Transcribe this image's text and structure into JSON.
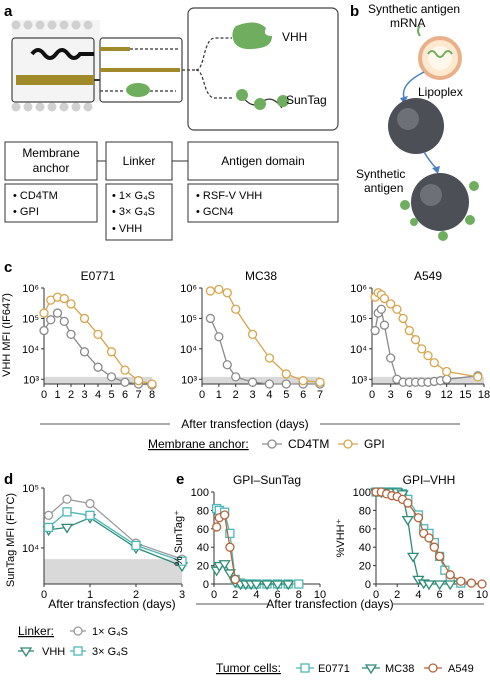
{
  "panel_labels": {
    "a": "a",
    "b": "b",
    "c": "c",
    "d": "d",
    "e": "e"
  },
  "panel_a": {
    "vhh_label": "VHH",
    "suntag_label": "SunTag",
    "headers": [
      "Membrane anchor",
      "Linker",
      "Antigen domain"
    ],
    "anchor_items": [
      "CD4TM",
      "GPI"
    ],
    "linker_items": [
      "1× G₄S",
      "3× G₄S",
      "VHH"
    ],
    "antigen_items": [
      "RSF-V VHH",
      "GCN4"
    ]
  },
  "panel_b": {
    "mrna_label": "Synthetic antigen mRNA",
    "lipoplex_label": "Lipoplex",
    "antigen_label": "Synthetic antigen"
  },
  "panel_c": {
    "ylabel": "VHH MFI (IF647)",
    "xlabel": "After transfection (days)",
    "legend_title": "Membrane anchor:",
    "legend": [
      "CD4TM",
      "GPI"
    ],
    "colors": {
      "CD4TM": "#8a8a8a",
      "GPI": "#d6a54c",
      "shade": "#d9d9d9"
    }
  },
  "panel_d": {
    "ylabel": "SunTag MFI (FITC)",
    "xlabel": "After transfection (days)",
    "legend_title": "Linker:",
    "legend": [
      "1× G₄S",
      "VHH",
      "3× G₄S"
    ],
    "colors": {
      "g1": "#9a9a9a",
      "vhh": "#2e8b78",
      "g3": "#4cb8b6"
    }
  },
  "panel_e": {
    "xlabel": "After transfection (days)",
    "legend_title": "Tumor cells:",
    "legend": [
      "E0771",
      "MC38",
      "A549"
    ],
    "colors": {
      "E0771": "#4cb8b6",
      "MC38": "#2e8b78",
      "A549": "#b5643a"
    }
  },
  "chart_data": [
    {
      "type": "line",
      "panel": "c",
      "title": "E0771",
      "scale": "log",
      "ylim": [
        700,
        1000000
      ],
      "xlim": [
        0,
        8
      ],
      "xticks": [
        0,
        1,
        2,
        3,
        4,
        5,
        6,
        7,
        8
      ],
      "yticks": [
        "10³",
        "10⁴",
        "10⁵",
        "10⁶"
      ],
      "series": [
        {
          "name": "CD4TM",
          "x": [
            0,
            0.5,
            1,
            1.5,
            2,
            3,
            4,
            5,
            6,
            7,
            8
          ],
          "y": [
            40000,
            90000,
            150000,
            80000,
            30000,
            8000,
            2500,
            1200,
            800,
            700,
            650
          ]
        },
        {
          "name": "GPI",
          "x": [
            0,
            0.5,
            1,
            1.5,
            2,
            3,
            4,
            5,
            6,
            7,
            8
          ],
          "y": [
            150000,
            400000,
            500000,
            450000,
            300000,
            100000,
            30000,
            8000,
            2000,
            900,
            700
          ]
        }
      ]
    },
    {
      "type": "line",
      "panel": "c",
      "title": "MC38",
      "scale": "log",
      "ylim": [
        700,
        1000000
      ],
      "xlim": [
        0,
        7
      ],
      "xticks": [
        0,
        1,
        2,
        3,
        4,
        5,
        6,
        7
      ],
      "yticks": [
        "10³",
        "10⁴",
        "10⁵",
        "10⁶"
      ],
      "series": [
        {
          "name": "CD4TM",
          "x": [
            0.5,
            1,
            1.5,
            2,
            3,
            4,
            5,
            6,
            7
          ],
          "y": [
            100000,
            25000,
            3000,
            1200,
            800,
            700,
            700,
            700,
            700
          ]
        },
        {
          "name": "GPI",
          "x": [
            0.5,
            1,
            1.5,
            2,
            3,
            4,
            5,
            6,
            7
          ],
          "y": [
            800000,
            900000,
            700000,
            200000,
            30000,
            5000,
            1500,
            900,
            800
          ]
        }
      ]
    },
    {
      "type": "line",
      "panel": "c",
      "title": "A549",
      "scale": "log",
      "ylim": [
        700,
        1000000
      ],
      "xlim": [
        0,
        18
      ],
      "xticks": [
        0,
        3,
        6,
        9,
        12,
        15,
        18
      ],
      "yticks": [
        "10³",
        "10⁴",
        "10⁵",
        "10⁶"
      ],
      "series": [
        {
          "name": "CD4TM",
          "x": [
            0.5,
            1,
            1.5,
            2,
            3,
            4,
            5,
            6,
            7,
            8,
            9,
            10,
            11,
            12,
            17
          ],
          "y": [
            40000,
            150000,
            200000,
            60000,
            5000,
            1000,
            800,
            800,
            800,
            800,
            800,
            850,
            900,
            1000,
            1300
          ]
        },
        {
          "name": "GPI",
          "x": [
            0.5,
            1,
            1.5,
            2,
            3,
            4,
            5,
            6,
            7,
            8,
            9,
            10,
            12,
            17
          ],
          "y": [
            500000,
            700000,
            600000,
            450000,
            300000,
            200000,
            100000,
            40000,
            20000,
            10000,
            6000,
            3500,
            1800,
            1200
          ]
        }
      ]
    },
    {
      "type": "line",
      "panel": "d",
      "scale": "log",
      "ylim": [
        2500,
        100000
      ],
      "xlim": [
        0,
        3
      ],
      "xticks": [
        0,
        1,
        2,
        3
      ],
      "yticks": [
        "10⁴",
        "10⁵"
      ],
      "series": [
        {
          "name": "1× G₄S",
          "x": [
            0.1,
            0.5,
            1,
            2,
            3
          ],
          "y": [
            35000,
            65000,
            55000,
            12000,
            6500
          ]
        },
        {
          "name": "VHH",
          "x": [
            0.1,
            0.5,
            1,
            2,
            3
          ],
          "y": [
            20000,
            22000,
            32000,
            10000,
            5000
          ]
        },
        {
          "name": "3× G₄S",
          "x": [
            0.1,
            0.5,
            1,
            2,
            3
          ],
          "y": [
            22000,
            40000,
            35000,
            11000,
            6000
          ]
        }
      ]
    },
    {
      "type": "line",
      "panel": "e",
      "title": "GPI–SunTag",
      "ylabel": "% SunTag⁺",
      "ylim": [
        0,
        100
      ],
      "xlim": [
        0,
        10
      ],
      "xticks": [
        0,
        2,
        4,
        6,
        8,
        10
      ],
      "yticks": [
        0,
        20,
        40,
        60,
        80,
        100
      ],
      "series": [
        {
          "name": "E0771",
          "x": [
            0.25,
            0.5,
            1,
            1.5,
            2,
            2.5,
            3,
            3.5,
            4,
            5,
            6,
            7,
            8
          ],
          "y": [
            82,
            80,
            78,
            55,
            5,
            1,
            0,
            0,
            0,
            0,
            0,
            0,
            0
          ]
        },
        {
          "name": "MC38",
          "x": [
            0.25,
            0.5,
            1,
            1.5,
            2,
            2.5,
            3,
            3.5,
            4,
            5,
            6,
            7
          ],
          "y": [
            15,
            20,
            22,
            12,
            2,
            0,
            0,
            0,
            0,
            0,
            0,
            0
          ]
        },
        {
          "name": "A549",
          "x": [
            0.25,
            0.5,
            1,
            1.5,
            2
          ],
          "y": [
            62,
            72,
            75,
            40,
            5
          ]
        }
      ]
    },
    {
      "type": "line",
      "panel": "e",
      "title": "GPI–VHH",
      "ylabel": "%VHH⁺",
      "ylim": [
        0,
        100
      ],
      "xlim": [
        0,
        10
      ],
      "xticks": [
        0,
        2,
        4,
        6,
        8,
        10
      ],
      "yticks": [
        0,
        20,
        40,
        60,
        80,
        100
      ],
      "series": [
        {
          "name": "E0771",
          "x": [
            0,
            0.5,
            1,
            1.5,
            2,
            2.5,
            3,
            4,
            4.5,
            5,
            5.5,
            6,
            6.5,
            7,
            8
          ],
          "y": [
            100,
            100,
            100,
            100,
            100,
            98,
            92,
            75,
            60,
            55,
            45,
            30,
            15,
            5,
            1
          ]
        },
        {
          "name": "MC38",
          "x": [
            0,
            0.5,
            1,
            1.5,
            2,
            2.5,
            3,
            3.5,
            4,
            4.5,
            5,
            6,
            7
          ],
          "y": [
            100,
            100,
            100,
            100,
            100,
            98,
            70,
            30,
            5,
            1,
            0,
            0,
            0
          ]
        },
        {
          "name": "A549",
          "x": [
            0,
            0.5,
            1,
            1.5,
            2,
            2.5,
            3,
            4,
            4.5,
            5,
            5.5,
            6,
            7,
            8,
            9,
            10
          ],
          "y": [
            100,
            100,
            98,
            96,
            95,
            92,
            88,
            72,
            55,
            50,
            40,
            30,
            10,
            3,
            1,
            0
          ]
        }
      ]
    }
  ]
}
